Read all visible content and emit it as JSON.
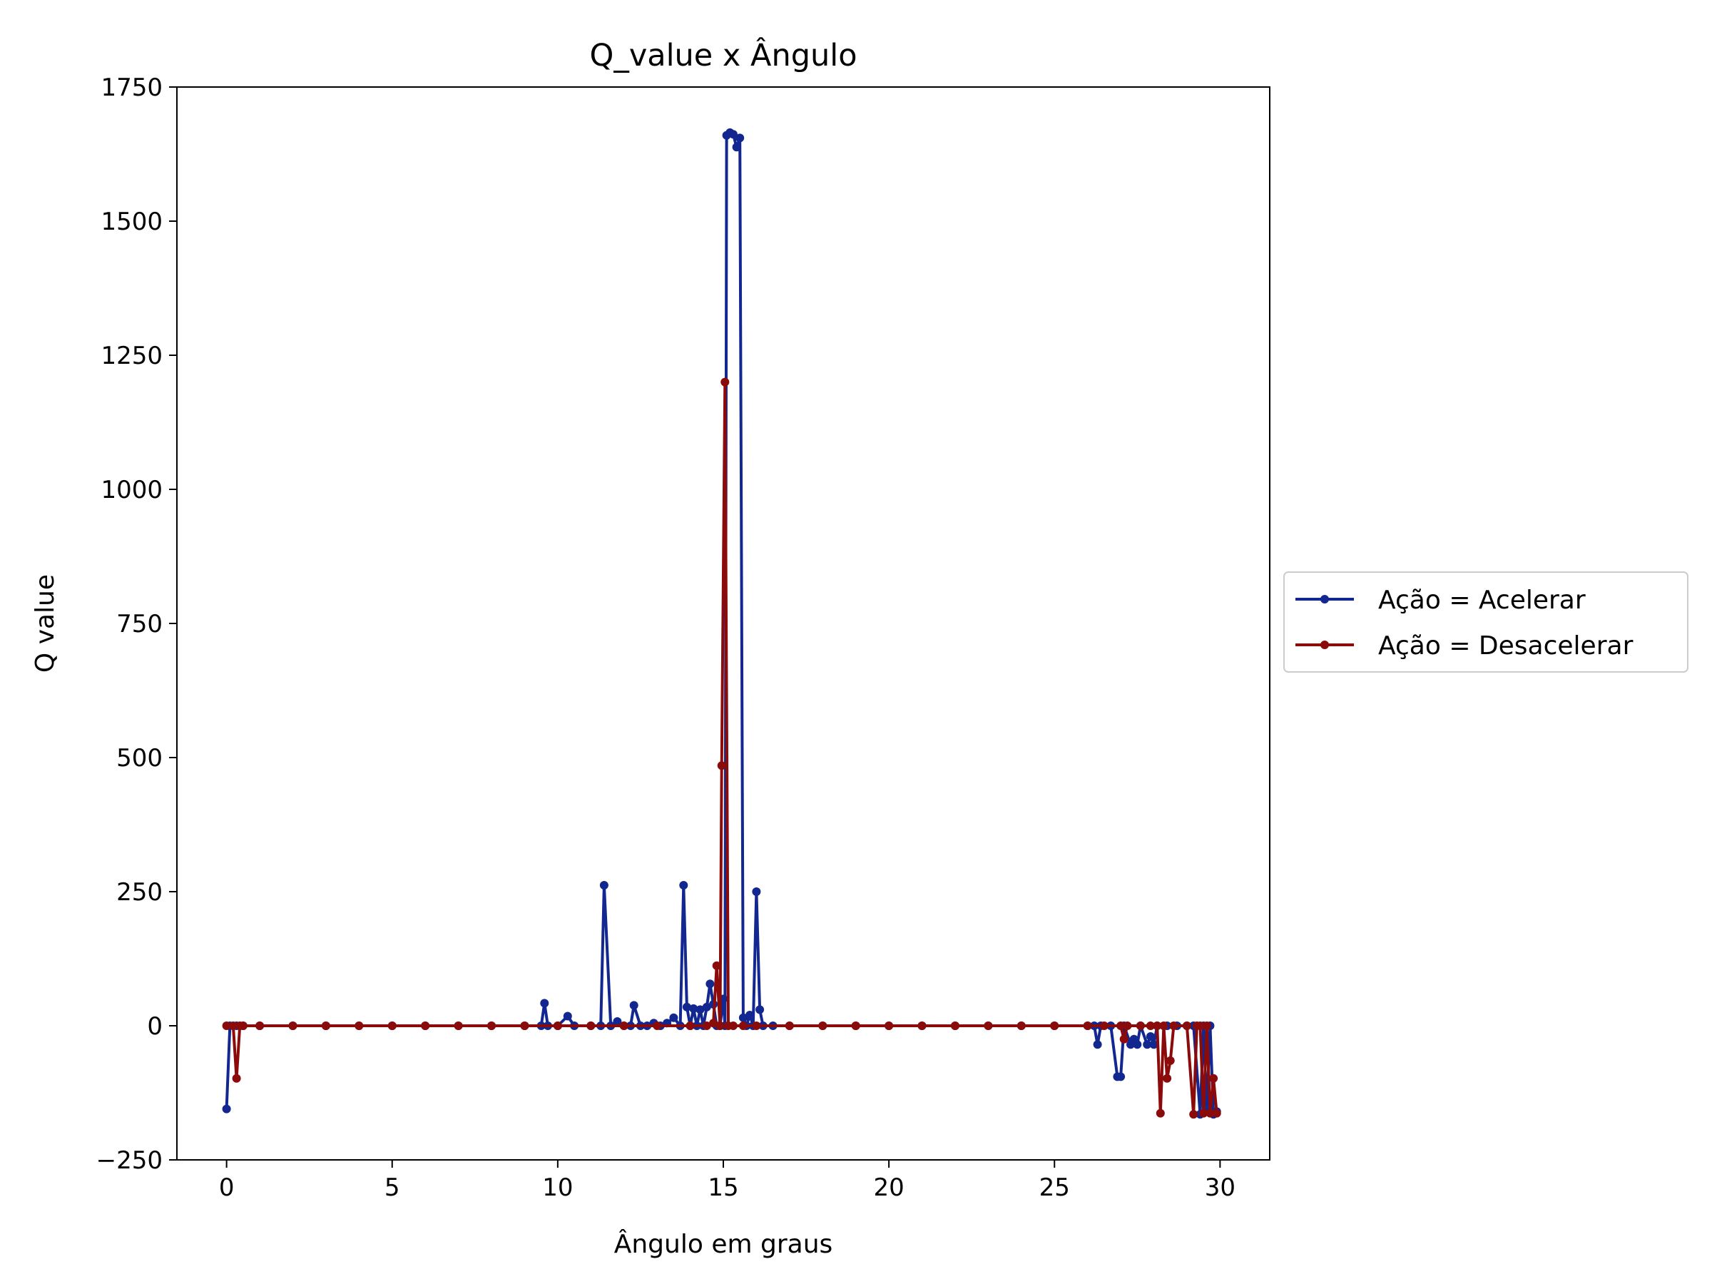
{
  "chart_data": {
    "type": "line",
    "title": "Q_value x Ângulo",
    "xlabel": "Ângulo em graus",
    "ylabel": "Q value",
    "xlim": [
      -1.5,
      31.5
    ],
    "ylim": [
      -250,
      1750
    ],
    "xticks": [
      0,
      5,
      10,
      15,
      20,
      25,
      30
    ],
    "yticks": [
      -250,
      0,
      250,
      500,
      750,
      1000,
      1250,
      1500,
      1750
    ],
    "xtick_labels": [
      "0",
      "5",
      "10",
      "15",
      "20",
      "25",
      "30"
    ],
    "ytick_labels": [
      "−250",
      "0",
      "250",
      "500",
      "750",
      "1000",
      "1250",
      "1500",
      "1750"
    ],
    "grid": false,
    "legend_position": "outside-right",
    "series": [
      {
        "name": "Ação = Acelerar",
        "color": "#12278f",
        "marker": "circle",
        "points": [
          [
            0.0,
            -155
          ],
          [
            0.1,
            0
          ],
          [
            0.3,
            0
          ],
          [
            0.5,
            0
          ],
          [
            1.0,
            0
          ],
          [
            2.0,
            0
          ],
          [
            3.0,
            0
          ],
          [
            4.0,
            0
          ],
          [
            5.0,
            0
          ],
          [
            6.0,
            0
          ],
          [
            7.0,
            0
          ],
          [
            8.0,
            0
          ],
          [
            9.0,
            0
          ],
          [
            9.5,
            0
          ],
          [
            9.6,
            42
          ],
          [
            9.7,
            0
          ],
          [
            10.0,
            0
          ],
          [
            10.3,
            18
          ],
          [
            10.5,
            0
          ],
          [
            11.0,
            0
          ],
          [
            11.3,
            0
          ],
          [
            11.4,
            262
          ],
          [
            11.6,
            0
          ],
          [
            11.8,
            8
          ],
          [
            12.0,
            0
          ],
          [
            12.2,
            0
          ],
          [
            12.3,
            38
          ],
          [
            12.5,
            0
          ],
          [
            12.7,
            0
          ],
          [
            12.9,
            5
          ],
          [
            13.1,
            0
          ],
          [
            13.3,
            5
          ],
          [
            13.5,
            15
          ],
          [
            13.7,
            0
          ],
          [
            13.8,
            262
          ],
          [
            13.9,
            35
          ],
          [
            14.0,
            0
          ],
          [
            14.1,
            32
          ],
          [
            14.2,
            0
          ],
          [
            14.3,
            30
          ],
          [
            14.4,
            0
          ],
          [
            14.5,
            35
          ],
          [
            14.6,
            78
          ],
          [
            14.7,
            40
          ],
          [
            14.8,
            0
          ],
          [
            14.9,
            0
          ],
          [
            15.0,
            50
          ],
          [
            15.05,
            0
          ],
          [
            15.1,
            1660
          ],
          [
            15.2,
            1665
          ],
          [
            15.3,
            1662
          ],
          [
            15.4,
            1638
          ],
          [
            15.5,
            1655
          ],
          [
            15.6,
            15
          ],
          [
            15.7,
            0
          ],
          [
            15.8,
            20
          ],
          [
            15.9,
            0
          ],
          [
            16.0,
            250
          ],
          [
            16.1,
            30
          ],
          [
            16.2,
            0
          ],
          [
            16.5,
            0
          ],
          [
            17.0,
            0
          ],
          [
            18.0,
            0
          ],
          [
            19.0,
            0
          ],
          [
            20.0,
            0
          ],
          [
            21.0,
            0
          ],
          [
            22.0,
            0
          ],
          [
            23.0,
            0
          ],
          [
            24.0,
            0
          ],
          [
            25.0,
            0
          ],
          [
            26.0,
            0
          ],
          [
            26.2,
            0
          ],
          [
            26.3,
            -35
          ],
          [
            26.4,
            0
          ],
          [
            26.7,
            0
          ],
          [
            26.9,
            -95
          ],
          [
            27.0,
            -95
          ],
          [
            27.1,
            0
          ],
          [
            27.3,
            -35
          ],
          [
            27.4,
            -25
          ],
          [
            27.5,
            -35
          ],
          [
            27.6,
            0
          ],
          [
            27.8,
            -35
          ],
          [
            27.9,
            -20
          ],
          [
            28.0,
            -35
          ],
          [
            28.1,
            0
          ],
          [
            28.4,
            0
          ],
          [
            28.7,
            0
          ],
          [
            29.0,
            0
          ],
          [
            29.2,
            0
          ],
          [
            29.4,
            -165
          ],
          [
            29.5,
            0
          ],
          [
            29.6,
            -160
          ],
          [
            29.7,
            0
          ],
          [
            29.8,
            -165
          ],
          [
            29.9,
            -160
          ]
        ]
      },
      {
        "name": "Ação = Desacelerar",
        "color": "#8b0a0a",
        "marker": "circle",
        "points": [
          [
            0.0,
            0
          ],
          [
            0.2,
            0
          ],
          [
            0.3,
            -98
          ],
          [
            0.4,
            0
          ],
          [
            0.5,
            0
          ],
          [
            1.0,
            0
          ],
          [
            2.0,
            0
          ],
          [
            3.0,
            0
          ],
          [
            4.0,
            0
          ],
          [
            5.0,
            0
          ],
          [
            6.0,
            0
          ],
          [
            7.0,
            0
          ],
          [
            8.0,
            0
          ],
          [
            9.0,
            0
          ],
          [
            10.0,
            0
          ],
          [
            11.0,
            0
          ],
          [
            12.0,
            0
          ],
          [
            13.0,
            0
          ],
          [
            14.0,
            0
          ],
          [
            14.5,
            0
          ],
          [
            14.7,
            5
          ],
          [
            14.8,
            112
          ],
          [
            14.9,
            0
          ],
          [
            14.95,
            485
          ],
          [
            15.05,
            1200
          ],
          [
            15.15,
            0
          ],
          [
            15.3,
            0
          ],
          [
            15.6,
            0
          ],
          [
            16.0,
            0
          ],
          [
            17.0,
            0
          ],
          [
            18.0,
            0
          ],
          [
            19.0,
            0
          ],
          [
            20.0,
            0
          ],
          [
            21.0,
            0
          ],
          [
            22.0,
            0
          ],
          [
            23.0,
            0
          ],
          [
            24.0,
            0
          ],
          [
            25.0,
            0
          ],
          [
            26.0,
            0
          ],
          [
            26.5,
            0
          ],
          [
            27.0,
            0
          ],
          [
            27.1,
            -25
          ],
          [
            27.2,
            0
          ],
          [
            27.6,
            0
          ],
          [
            27.9,
            0
          ],
          [
            28.1,
            0
          ],
          [
            28.2,
            -163
          ],
          [
            28.3,
            0
          ],
          [
            28.4,
            -98
          ],
          [
            28.5,
            -65
          ],
          [
            28.6,
            0
          ],
          [
            29.0,
            0
          ],
          [
            29.2,
            -165
          ],
          [
            29.3,
            0
          ],
          [
            29.4,
            0
          ],
          [
            29.5,
            -163
          ],
          [
            29.6,
            0
          ],
          [
            29.7,
            -163
          ],
          [
            29.8,
            -98
          ],
          [
            29.9,
            -163
          ]
        ]
      }
    ]
  }
}
